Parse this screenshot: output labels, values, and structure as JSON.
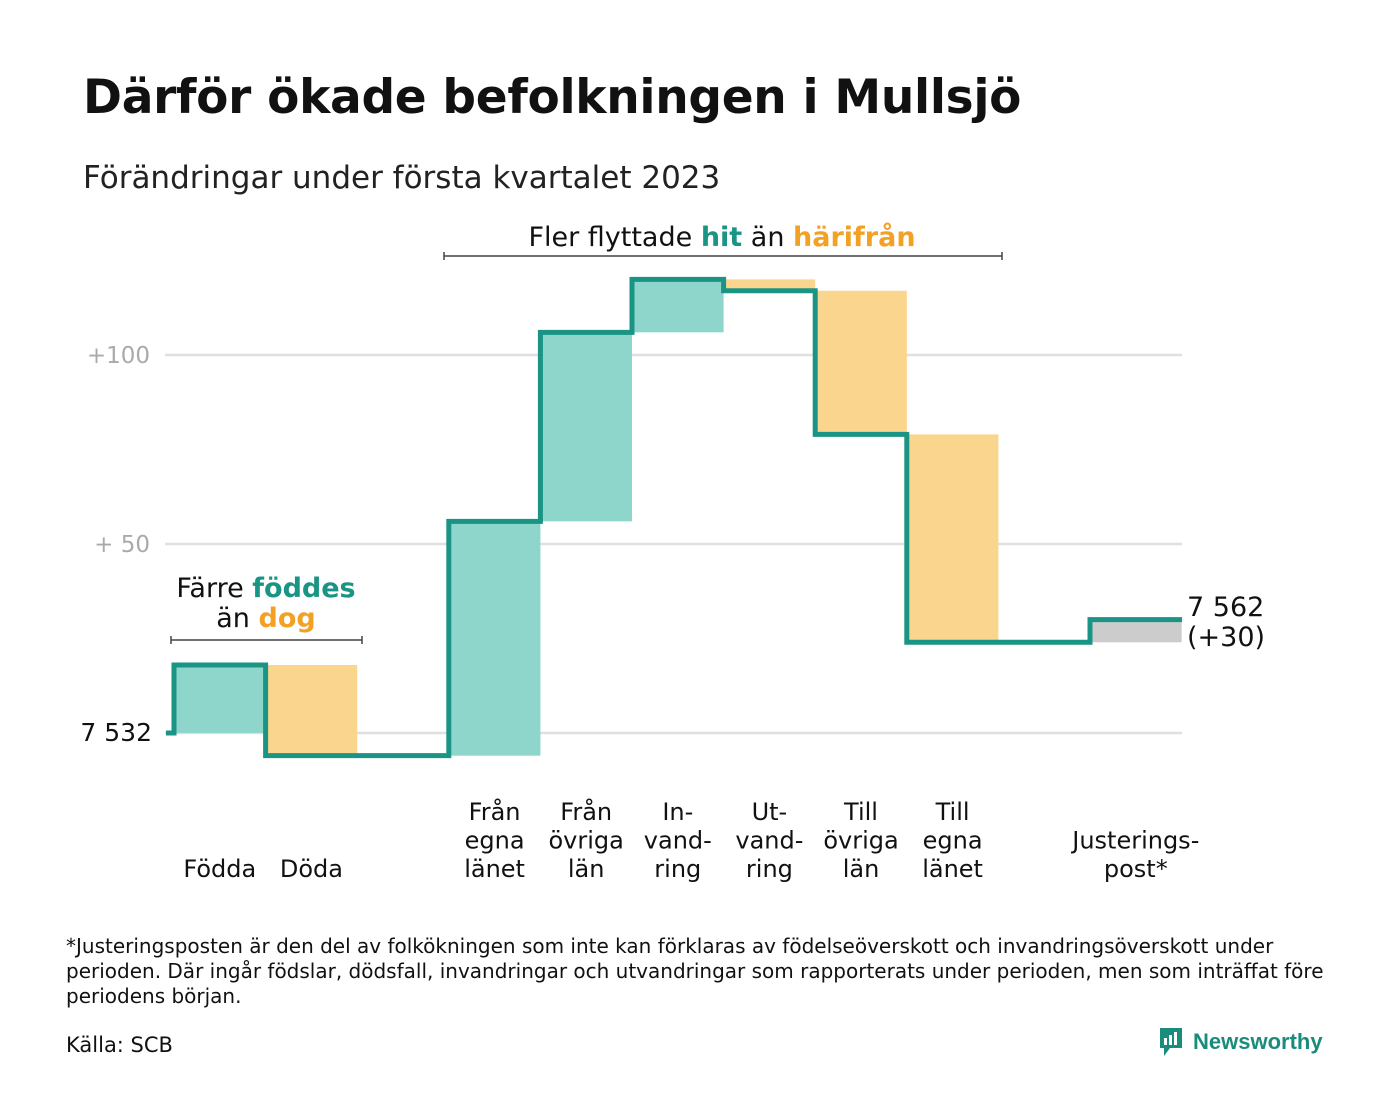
{
  "title": "Därför ökade befolkningen i Mullsjö",
  "subtitle": "Förändringar under första kvartalet 2023",
  "colors": {
    "increase": "#8ed6cb",
    "decrease": "#fad58e",
    "adjustment": "#cccccc",
    "line": "#1a9484",
    "teal_text": "#1a9484",
    "orange_text": "#f2a124",
    "grid": "#e0e0e0",
    "tick": "#aaaaaa"
  },
  "chart_data": {
    "type": "waterfall",
    "start": {
      "label": "7 532",
      "value": 0
    },
    "end": {
      "label_line1": "7 562",
      "label_line2": "(+30)",
      "value": 30
    },
    "y_ticks": [
      {
        "value": 100,
        "label": "+100"
      },
      {
        "value": 50,
        "label": "+ 50"
      },
      {
        "value": 0,
        "label": ""
      }
    ],
    "ylim": [
      -8,
      125
    ],
    "steps": [
      {
        "label_lines": [
          "Födda"
        ],
        "delta": 18,
        "kind": "increase"
      },
      {
        "label_lines": [
          "Döda"
        ],
        "delta": -24,
        "kind": "decrease"
      },
      {
        "label_lines": [],
        "delta": 0,
        "kind": "gap"
      },
      {
        "label_lines": [
          "Från",
          "egna",
          "länet"
        ],
        "delta": 62,
        "kind": "increase"
      },
      {
        "label_lines": [
          "Från",
          "övriga",
          "län"
        ],
        "delta": 50,
        "kind": "increase"
      },
      {
        "label_lines": [
          "In-",
          "vand-",
          "ring"
        ],
        "delta": 14,
        "kind": "increase"
      },
      {
        "label_lines": [
          "Ut-",
          "vand-",
          "ring"
        ],
        "delta": -3,
        "kind": "decrease"
      },
      {
        "label_lines": [
          "Till",
          "övriga",
          "län"
        ],
        "delta": -38,
        "kind": "decrease"
      },
      {
        "label_lines": [
          "Till",
          "egna",
          "länet"
        ],
        "delta": -55,
        "kind": "decrease"
      },
      {
        "label_lines": [],
        "delta": 0,
        "kind": "gap"
      },
      {
        "label_lines": [
          "Justerings-",
          "post*"
        ],
        "delta": 6,
        "kind": "adjustment"
      }
    ],
    "annotations": [
      {
        "id": "births",
        "parts": [
          {
            "line": 1,
            "text": "Färre ",
            "style": "plain"
          },
          {
            "line": 1,
            "text": "föddes",
            "style": "teal"
          },
          {
            "line": 2,
            "text": "än ",
            "style": "plain"
          },
          {
            "line": 2,
            "text": "dog",
            "style": "orange"
          }
        ]
      },
      {
        "id": "moves",
        "parts": [
          {
            "line": 1,
            "text": "Fler flyttade ",
            "style": "plain"
          },
          {
            "line": 1,
            "text": "hit",
            "style": "teal"
          },
          {
            "line": 1,
            "text": " än ",
            "style": "plain"
          },
          {
            "line": 1,
            "text": "härifrån",
            "style": "orange"
          }
        ]
      }
    ]
  },
  "footnote": "*Justeringsposten är den del av folkökningen som inte kan förklaras av födelseöverskott och invandringsöverskott under perioden. Där ingår födslar, dödsfall, invandringar och utvandringar som rapporterats under perioden, men som inträffat före periodens början.",
  "source": "Källa: SCB",
  "brand": "Newsworthy"
}
